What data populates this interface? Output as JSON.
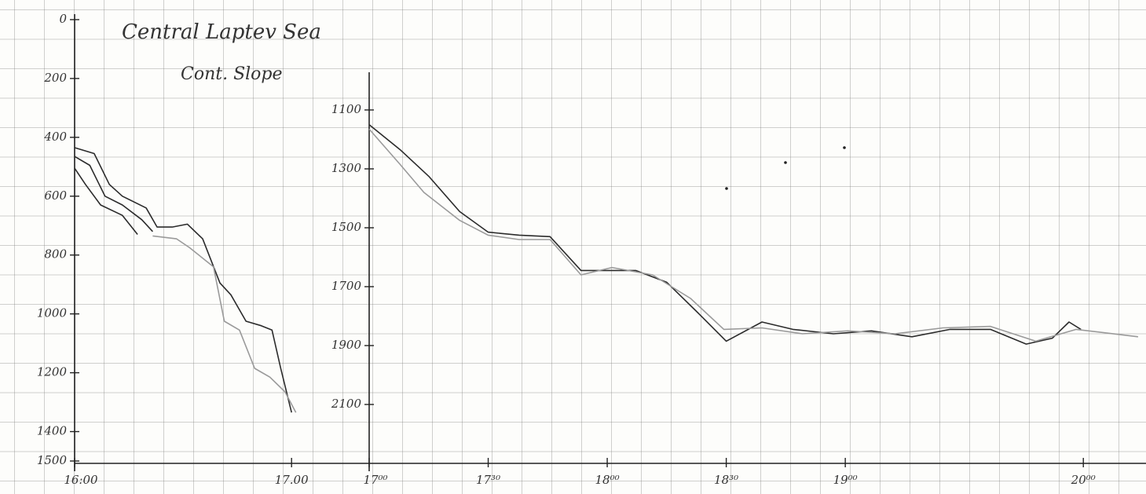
{
  "chart_data": [
    {
      "type": "line",
      "title": "Central Laptev Sea",
      "subtitle": "Cont. Slope",
      "xlim": [
        16,
        17.05
      ],
      "ylim": [
        0,
        1500
      ],
      "y_inverted": true,
      "xticks": [
        {
          "value": 16,
          "label": "16:00"
        },
        {
          "value": 17,
          "label": "17.00"
        }
      ],
      "yticks": [
        0,
        200,
        400,
        600,
        800,
        1000,
        1200,
        1400,
        1500
      ],
      "grid": false,
      "series": [
        {
          "color": "#2b2b2b",
          "x": [
            16.0,
            16.09,
            16.16,
            16.22,
            16.33,
            16.38,
            16.45,
            16.52,
            16.59,
            16.67,
            16.72,
            16.79,
            16.86,
            16.91,
            16.95,
            17.0
          ],
          "values": [
            435,
            455,
            560,
            600,
            640,
            705,
            705,
            695,
            745,
            895,
            935,
            1025,
            1040,
            1055,
            1185,
            1335
          ]
        },
        {
          "color": "#2b2b2b",
          "x": [
            16.0,
            16.07,
            16.14,
            16.22,
            16.31,
            16.36
          ],
          "values": [
            465,
            495,
            600,
            630,
            680,
            720
          ]
        },
        {
          "color": "#2b2b2b",
          "x": [
            16.0,
            16.05,
            16.12,
            16.22,
            16.29
          ],
          "values": [
            505,
            560,
            630,
            665,
            730
          ]
        },
        {
          "color": "#9a9a9a",
          "x": [
            16.36,
            16.47,
            16.53,
            16.64,
            16.69,
            16.76,
            16.83,
            16.9,
            16.97,
            17.02
          ],
          "values": [
            735,
            745,
            775,
            840,
            1025,
            1055,
            1185,
            1215,
            1265,
            1335
          ]
        }
      ]
    },
    {
      "type": "line",
      "xlim": [
        17,
        20.25
      ],
      "ylim": [
        980,
        2300
      ],
      "y_inverted": true,
      "xticks": [
        {
          "value": 17,
          "label": "17⁰⁰"
        },
        {
          "value": 17.5,
          "label": "17³⁰"
        },
        {
          "value": 18,
          "label": "18⁰⁰"
        },
        {
          "value": 18.5,
          "label": "18³⁰"
        },
        {
          "value": 19,
          "label": "19⁰⁰"
        },
        {
          "value": 20,
          "label": "20⁰⁰"
        }
      ],
      "yticks": [
        1100,
        1300,
        1500,
        1700,
        1900,
        2100
      ],
      "grid": false,
      "series": [
        {
          "color": "#2b2b2b",
          "x": [
            17.0,
            17.13,
            17.25,
            17.38,
            17.5,
            17.63,
            17.76,
            17.89,
            17.99,
            18.12,
            18.25,
            18.37,
            18.5,
            18.65,
            18.78,
            18.95,
            19.11,
            19.28,
            19.44,
            19.61,
            19.76,
            19.87,
            19.94,
            19.99
          ],
          "values": [
            1150,
            1235,
            1325,
            1445,
            1515,
            1525,
            1530,
            1645,
            1645,
            1645,
            1685,
            1780,
            1885,
            1820,
            1845,
            1860,
            1850,
            1870,
            1845,
            1845,
            1895,
            1875,
            1820,
            1845
          ]
        },
        {
          "color": "#9a9a9a",
          "x": [
            17.0,
            17.13,
            17.23,
            17.38,
            17.5,
            17.63,
            17.76,
            17.89,
            18.02,
            18.19,
            18.35,
            18.49,
            18.65,
            18.82,
            19.01,
            19.21,
            19.41,
            19.61,
            19.8,
            19.97,
            20.23
          ],
          "values": [
            1165,
            1285,
            1380,
            1475,
            1525,
            1540,
            1540,
            1660,
            1635,
            1660,
            1740,
            1845,
            1840,
            1860,
            1850,
            1860,
            1840,
            1835,
            1885,
            1845,
            1870
          ]
        }
      ]
    }
  ]
}
